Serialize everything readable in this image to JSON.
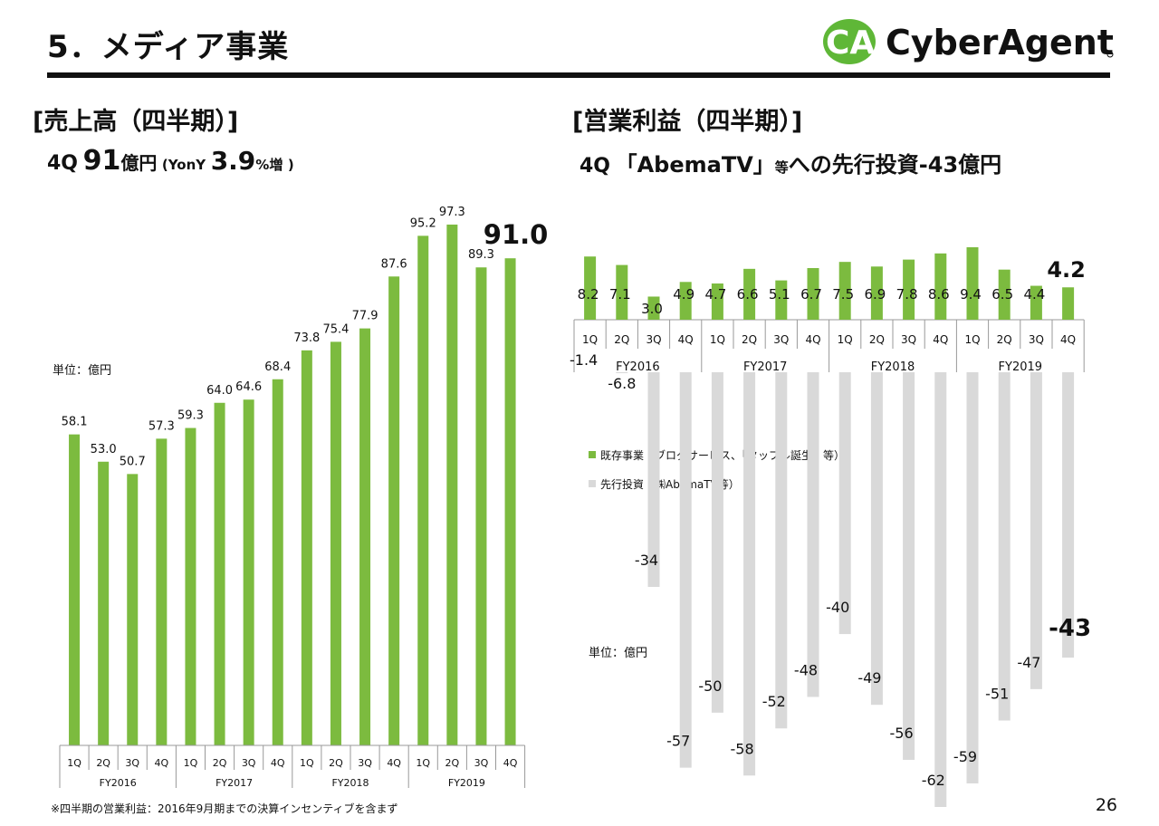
{
  "header": {
    "title": "5．メディア事業",
    "logo_text": "CyberAgent",
    "logo_mark": "CA"
  },
  "page_number": "26",
  "footnote": "※四半期の営業利益：2016年9月期までの決算インセンティブを含まず",
  "colors": {
    "green": "#7cbb3f",
    "gray": "#d9d9d9",
    "logo_green": "#5fb737",
    "rule": "#111111"
  },
  "left_panel": {
    "section_title": "[売上高（四半期）]",
    "headline": {
      "quarter": "4Q",
      "value": "91",
      "unit": "億円",
      "yoy_prefix": "(YonY",
      "yoy_value": "3.9",
      "yoy_suffix": "%増",
      "close": ")"
    },
    "unit_label": "単位：億円"
  },
  "right_panel": {
    "section_title": "[営業利益（四半期）]",
    "headline": {
      "quarter": "4Q",
      "text": "「AbemaTV」",
      "small": "等",
      "rest": "への先行投資-43億円"
    },
    "unit_label": "単位：億円",
    "legend": [
      {
        "label": "既存事業（ブログサービス、「タップル誕生」等）",
        "color": "#7cbb3f"
      },
      {
        "label": "先行投資（㈱AbemaTV等）",
        "color": "#d9d9d9"
      }
    ]
  },
  "chart_data": [
    {
      "type": "bar",
      "title": "売上高（四半期）",
      "categories": [
        "1Q",
        "2Q",
        "3Q",
        "4Q",
        "1Q",
        "2Q",
        "3Q",
        "4Q",
        "1Q",
        "2Q",
        "3Q",
        "4Q",
        "1Q",
        "2Q",
        "3Q",
        "4Q"
      ],
      "groups": [
        "FY2016",
        "FY2017",
        "FY2018",
        "FY2019"
      ],
      "values": [
        58.1,
        53.0,
        50.7,
        57.3,
        59.3,
        64.0,
        64.6,
        68.4,
        73.8,
        75.4,
        77.9,
        87.6,
        95.2,
        97.3,
        89.3,
        91.0
      ],
      "labels": [
        "58.1",
        "53.0",
        "50.7",
        "57.3",
        "59.3",
        "64.0",
        "64.6",
        "68.4",
        "73.8",
        "75.4",
        "77.9",
        "87.6",
        "95.2",
        "97.3",
        "89.3",
        "91.0"
      ],
      "ylim": [
        0,
        100
      ],
      "color": "#7cbb3f",
      "unit": "億円",
      "grid": false
    },
    {
      "type": "bar",
      "title": "営業利益（四半期）",
      "categories": [
        "1Q",
        "2Q",
        "3Q",
        "4Q",
        "1Q",
        "2Q",
        "3Q",
        "4Q",
        "1Q",
        "2Q",
        "3Q",
        "4Q",
        "1Q",
        "2Q",
        "3Q",
        "4Q"
      ],
      "groups": [
        "FY2016",
        "FY2017",
        "FY2018",
        "FY2019"
      ],
      "series": [
        {
          "name": "既存事業（ブログサービス、「タップル誕生」等）",
          "color": "#7cbb3f",
          "values": [
            8.2,
            7.1,
            3.0,
            4.9,
            4.7,
            6.6,
            5.1,
            6.7,
            7.5,
            6.9,
            7.8,
            8.6,
            9.4,
            6.5,
            4.4,
            4.2
          ],
          "labels": [
            "8.2",
            "7.1",
            "3.0",
            "4.9",
            "4.7",
            "6.6",
            "5.1",
            "6.7",
            "7.5",
            "6.9",
            "7.8",
            "8.6",
            "9.4",
            "6.5",
            "4.4",
            "4.2"
          ]
        },
        {
          "name": "先行投資（㈱AbemaTV等）",
          "color": "#d9d9d9",
          "values": [
            -1.4,
            -6.8,
            -34,
            -57,
            -50,
            -58,
            -52,
            -48,
            -40,
            -49,
            -56,
            -62,
            -59,
            -51,
            -47,
            -43
          ],
          "labels": [
            "-1.4",
            "-6.8",
            "-34",
            "-57",
            "-50",
            "-58",
            "-52",
            "-48",
            "-40",
            "-49",
            "-56",
            "-62",
            "-59",
            "-51",
            "-47",
            "-43"
          ]
        }
      ],
      "ylim": [
        -62,
        9.4
      ],
      "unit": "億円",
      "legend": "left-middle",
      "grid": false
    }
  ]
}
